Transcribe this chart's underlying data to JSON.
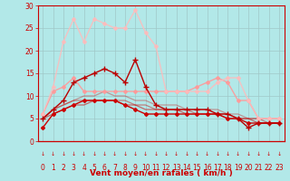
{
  "background_color": "#b2e8e8",
  "grid_color": "#c0d8d8",
  "xlabel": "Vent moyen/en rafales ( km/h )",
  "xlim": [
    -0.5,
    23.5
  ],
  "ylim": [
    0,
    30
  ],
  "yticks": [
    0,
    5,
    10,
    15,
    20,
    25,
    30
  ],
  "xticks": [
    0,
    1,
    2,
    3,
    4,
    5,
    6,
    7,
    8,
    9,
    10,
    11,
    12,
    13,
    14,
    15,
    16,
    17,
    18,
    19,
    20,
    21,
    22,
    23
  ],
  "series": [
    {
      "x": [
        0,
        1,
        2,
        3,
        4,
        5,
        6,
        7,
        8,
        9,
        10,
        11,
        12,
        13,
        14,
        15,
        16,
        17,
        18,
        19,
        20,
        21,
        22,
        23
      ],
      "y": [
        3,
        6,
        7,
        8,
        9,
        9,
        9,
        9,
        8,
        7,
        6,
        6,
        6,
        6,
        6,
        6,
        6,
        6,
        5,
        5,
        4,
        4,
        4,
        4
      ],
      "color": "#cc0000",
      "alpha": 1.0,
      "linewidth": 1.0,
      "marker": "D",
      "markersize": 2.0,
      "zorder": 6
    },
    {
      "x": [
        0,
        1,
        2,
        3,
        4,
        5,
        6,
        7,
        8,
        9,
        10,
        11,
        12,
        13,
        14,
        15,
        16,
        17,
        18,
        19,
        20,
        21,
        22,
        23
      ],
      "y": [
        5,
        7,
        9,
        13,
        14,
        15,
        16,
        15,
        13,
        18,
        12,
        8,
        7,
        7,
        7,
        7,
        7,
        6,
        6,
        5,
        3,
        4,
        4,
        4
      ],
      "color": "#bb0000",
      "alpha": 1.0,
      "linewidth": 1.0,
      "marker": "+",
      "markersize": 4.0,
      "zorder": 6
    },
    {
      "x": [
        0,
        1,
        2,
        3,
        4,
        5,
        6,
        7,
        8,
        9,
        10,
        11,
        12,
        13,
        14,
        15,
        16,
        17,
        18,
        19,
        20,
        21,
        22,
        23
      ],
      "y": [
        5,
        6,
        7,
        8,
        8,
        9,
        9,
        9,
        8,
        8,
        7,
        7,
        7,
        7,
        6,
        6,
        6,
        6,
        5,
        5,
        5,
        4,
        4,
        4
      ],
      "color": "#cc0000",
      "alpha": 0.55,
      "linewidth": 0.9,
      "marker": null,
      "markersize": 0,
      "zorder": 3
    },
    {
      "x": [
        0,
        1,
        2,
        3,
        4,
        5,
        6,
        7,
        8,
        9,
        10,
        11,
        12,
        13,
        14,
        15,
        16,
        17,
        18,
        19,
        20,
        21,
        22,
        23
      ],
      "y": [
        5,
        7,
        8,
        9,
        9,
        9,
        9,
        9,
        9,
        8,
        8,
        7,
        7,
        7,
        7,
        6,
        6,
        6,
        6,
        5,
        5,
        5,
        4,
        4
      ],
      "color": "#cc0000",
      "alpha": 0.45,
      "linewidth": 0.9,
      "marker": null,
      "markersize": 0,
      "zorder": 3
    },
    {
      "x": [
        0,
        1,
        2,
        3,
        4,
        5,
        6,
        7,
        8,
        9,
        10,
        11,
        12,
        13,
        14,
        15,
        16,
        17,
        18,
        19,
        20,
        21,
        22,
        23
      ],
      "y": [
        5,
        7,
        8,
        9,
        10,
        10,
        11,
        10,
        10,
        9,
        9,
        8,
        8,
        8,
        7,
        7,
        7,
        7,
        6,
        6,
        5,
        5,
        5,
        5
      ],
      "color": "#cc0000",
      "alpha": 0.35,
      "linewidth": 0.9,
      "marker": null,
      "markersize": 0,
      "zorder": 3
    },
    {
      "x": [
        0,
        1,
        2,
        3,
        4,
        5,
        6,
        7,
        8,
        9,
        10,
        11,
        12,
        13,
        14,
        15,
        16,
        17,
        18,
        19,
        20,
        21,
        22,
        23
      ],
      "y": [
        6,
        11,
        12,
        14,
        11,
        11,
        11,
        11,
        11,
        11,
        11,
        11,
        11,
        11,
        11,
        12,
        13,
        14,
        13,
        9,
        9,
        5,
        5,
        5
      ],
      "color": "#ff9999",
      "alpha": 0.9,
      "linewidth": 1.0,
      "marker": "D",
      "markersize": 2.0,
      "zorder": 4
    },
    {
      "x": [
        0,
        1,
        2,
        3,
        4,
        5,
        6,
        7,
        8,
        9,
        10,
        11,
        12,
        13,
        14,
        15,
        16,
        17,
        18,
        19,
        20,
        21,
        22,
        23
      ],
      "y": [
        6,
        12,
        22,
        27,
        22,
        27,
        26,
        25,
        25,
        29,
        24,
        21,
        11,
        11,
        11,
        11,
        11,
        13,
        14,
        14,
        9,
        5,
        5,
        5
      ],
      "color": "#ffbbbb",
      "alpha": 0.85,
      "linewidth": 1.0,
      "marker": "D",
      "markersize": 2.0,
      "zorder": 4
    }
  ],
  "arrow_color": "#cc0000",
  "tick_label_fontsize": 5.5,
  "xlabel_fontsize": 6.5,
  "xlabel_color": "#cc0000",
  "tick_color": "#cc0000"
}
